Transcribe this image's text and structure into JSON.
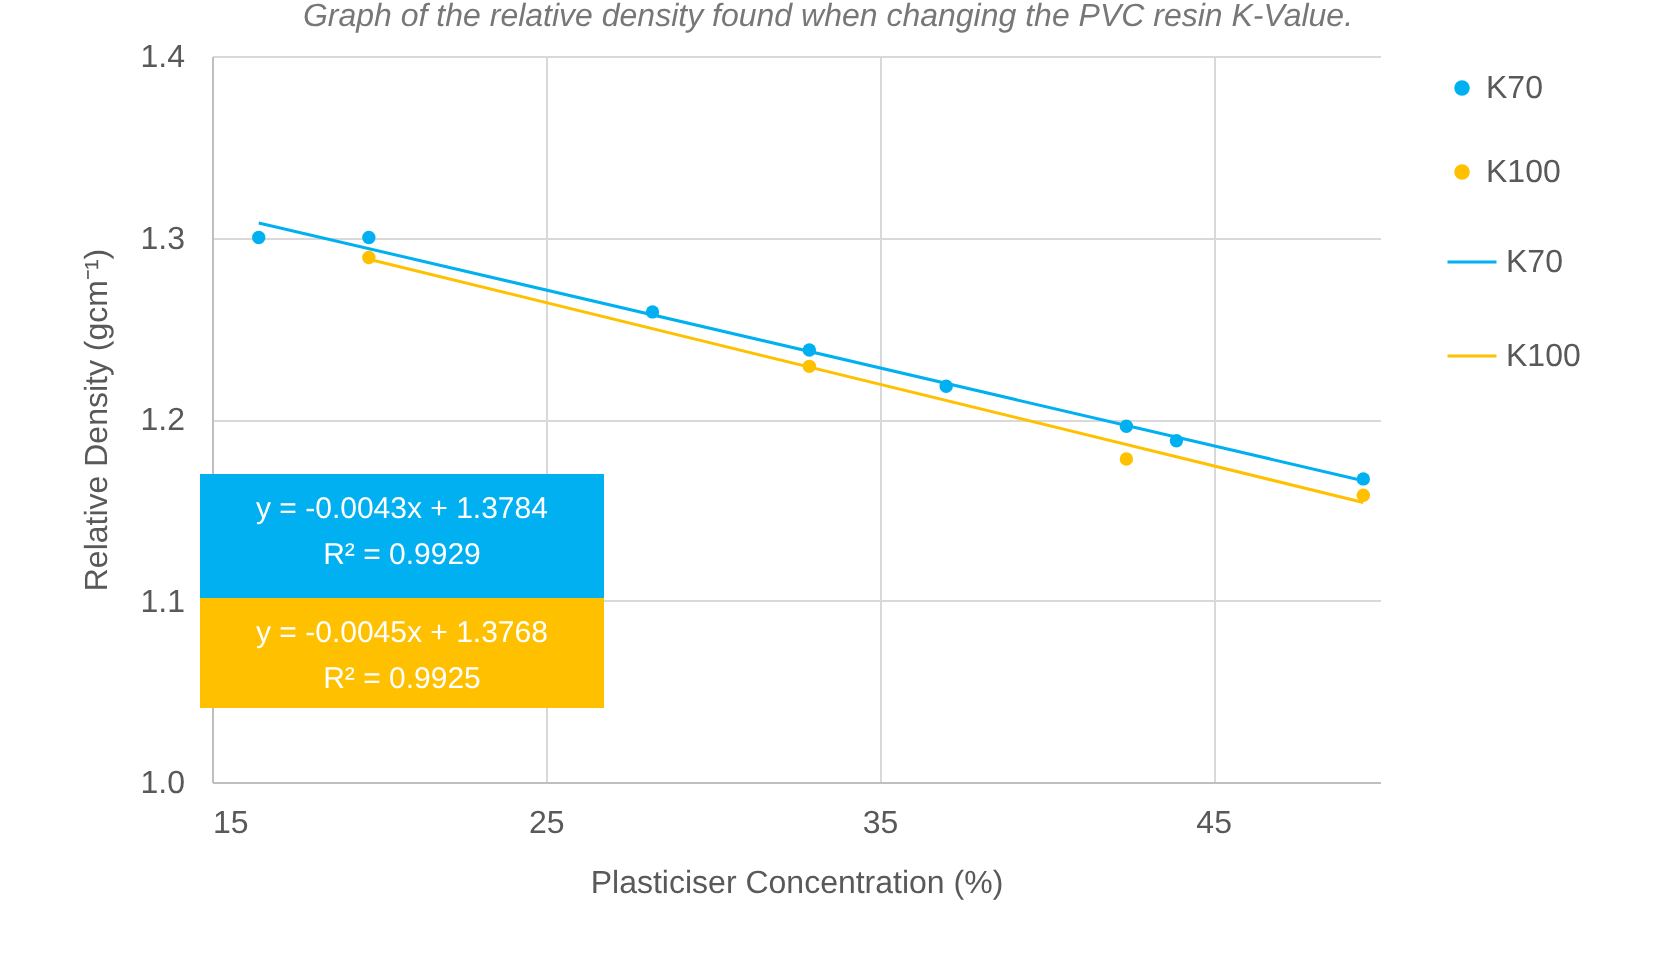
{
  "chart_data": {
    "type": "scatter",
    "title": "Graph of the relative density found when changing the PVC resin K-Value.",
    "xlabel": "Plasticiser Concentration (%)",
    "ylabel": "Relative Density (gcm⁻¹)",
    "xlim": [
      15,
      50
    ],
    "xticks": [
      15,
      25,
      35,
      45
    ],
    "ylim": [
      1.0,
      1.4
    ],
    "yticks": [
      {
        "value": 1.0,
        "label": "1.0"
      },
      1.1,
      1.2,
      1.3,
      1.4
    ],
    "grid": true,
    "legend": "right",
    "series": [
      {
        "name": "K70",
        "color": "#00b0f0",
        "x": [
          16.4,
          19.7,
          28.2,
          32.9,
          37.0,
          42.4,
          43.9,
          49.5
        ],
        "values": [
          1.3,
          1.3,
          1.259,
          1.238,
          1.218,
          1.196,
          1.188,
          1.167
        ]
      },
      {
        "name": "K100",
        "color": "#ffc000",
        "x": [
          19.7,
          32.9,
          42.4,
          49.5
        ],
        "values": [
          1.289,
          1.229,
          1.178,
          1.158
        ]
      },
      {
        "name": "K70",
        "type": "line",
        "color": "#00b0f0",
        "x": [
          16.4,
          49.5
        ],
        "values": [
          1.308,
          1.166
        ]
      },
      {
        "name": "K100",
        "type": "line",
        "color": "#ffc000",
        "x": [
          19.7,
          49.5
        ],
        "values": [
          1.288,
          1.154
        ]
      }
    ],
    "annotations": [
      "y = -0.0043x + 1.3784",
      "R² = 0.9929",
      "y = -0.0045x + 1.3768",
      "R² = 0.9925"
    ]
  }
}
